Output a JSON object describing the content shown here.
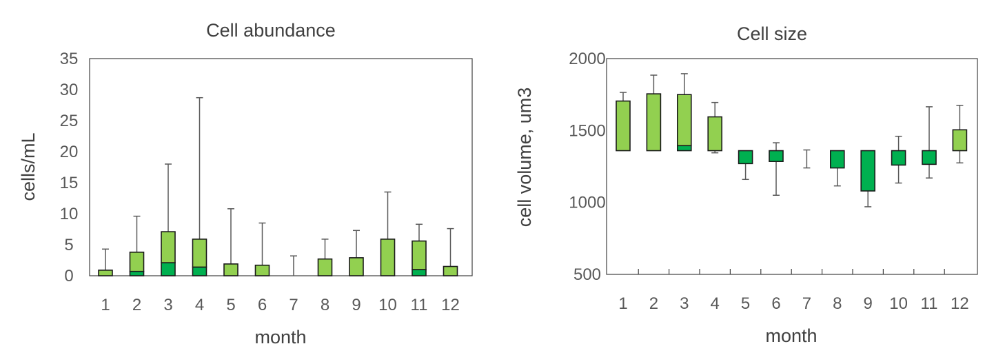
{
  "chart_data": [
    {
      "type": "boxplot",
      "title": "Cell abundance",
      "xlabel": "month",
      "ylabel": "cells/mL",
      "ylim": [
        0,
        35
      ],
      "yticks": [
        0,
        5,
        10,
        15,
        20,
        25,
        30,
        35
      ],
      "categories": [
        "1",
        "2",
        "3",
        "4",
        "5",
        "6",
        "7",
        "8",
        "9",
        "10",
        "11",
        "12"
      ],
      "colors": {
        "upper_box": "#92d050",
        "lower_box": "#00b050"
      },
      "series": [
        {
          "q1": 0,
          "median": 0,
          "q3": 0.9,
          "min": 0,
          "max": 4.3
        },
        {
          "q1": 0,
          "median": 0.7,
          "q3": 3.8,
          "min": 0,
          "max": 9.6
        },
        {
          "q1": 0,
          "median": 2.1,
          "q3": 7.1,
          "min": 0,
          "max": 18.0
        },
        {
          "q1": 0,
          "median": 1.4,
          "q3": 5.9,
          "min": 0,
          "max": 28.7
        },
        {
          "q1": 0,
          "median": 0,
          "q3": 1.9,
          "min": 0,
          "max": 10.8
        },
        {
          "q1": 0,
          "median": 0,
          "q3": 1.7,
          "min": 0,
          "max": 8.5
        },
        {
          "q1": 0,
          "median": 0,
          "q3": 0,
          "min": 0,
          "max": 3.2
        },
        {
          "q1": 0,
          "median": 0,
          "q3": 2.7,
          "min": 0,
          "max": 5.9
        },
        {
          "q1": 0,
          "median": 0,
          "q3": 2.9,
          "min": 0,
          "max": 7.3
        },
        {
          "q1": 0,
          "median": 0,
          "q3": 5.9,
          "min": 0,
          "max": 13.5
        },
        {
          "q1": 0,
          "median": 1.0,
          "q3": 5.6,
          "min": 0,
          "max": 8.3
        },
        {
          "q1": 0,
          "median": 0,
          "q3": 1.5,
          "min": 0,
          "max": 7.6
        }
      ]
    },
    {
      "type": "boxplot",
      "title": "Cell size",
      "xlabel": "month",
      "ylabel": "cell volume, um3",
      "ylim": [
        500,
        2000
      ],
      "yticks": [
        500,
        1000,
        1500,
        2000
      ],
      "categories": [
        "1",
        "2",
        "3",
        "4",
        "5",
        "6",
        "7",
        "8",
        "9",
        "10",
        "11",
        "12"
      ],
      "colors": {
        "upper_box": "#92d050",
        "lower_box": "#00b050"
      },
      "series": [
        {
          "q1": 1360,
          "median": 1360,
          "q3": 1705,
          "min": 1360,
          "max": 1765
        },
        {
          "q1": 1360,
          "median": 1360,
          "q3": 1755,
          "min": 1360,
          "max": 1885
        },
        {
          "q1": 1360,
          "median": 1395,
          "q3": 1750,
          "min": 1360,
          "max": 1895
        },
        {
          "q1": 1360,
          "median": 1360,
          "q3": 1595,
          "min": 1345,
          "max": 1695
        },
        {
          "q1": 1270,
          "median": 1360,
          "q3": 1360,
          "min": 1160,
          "max": 1360
        },
        {
          "q1": 1285,
          "median": 1360,
          "q3": 1360,
          "min": 1050,
          "max": 1415
        },
        {
          "q1": 1360,
          "median": 1360,
          "q3": 1360,
          "min": 1240,
          "max": 1365
        },
        {
          "q1": 1240,
          "median": 1360,
          "q3": 1360,
          "min": 1115,
          "max": 1360
        },
        {
          "q1": 1080,
          "median": 1360,
          "q3": 1360,
          "min": 970,
          "max": 1360
        },
        {
          "q1": 1260,
          "median": 1360,
          "q3": 1360,
          "min": 1135,
          "max": 1460
        },
        {
          "q1": 1265,
          "median": 1360,
          "q3": 1360,
          "min": 1170,
          "max": 1665
        },
        {
          "q1": 1360,
          "median": 1360,
          "q3": 1505,
          "min": 1275,
          "max": 1675
        }
      ]
    }
  ]
}
